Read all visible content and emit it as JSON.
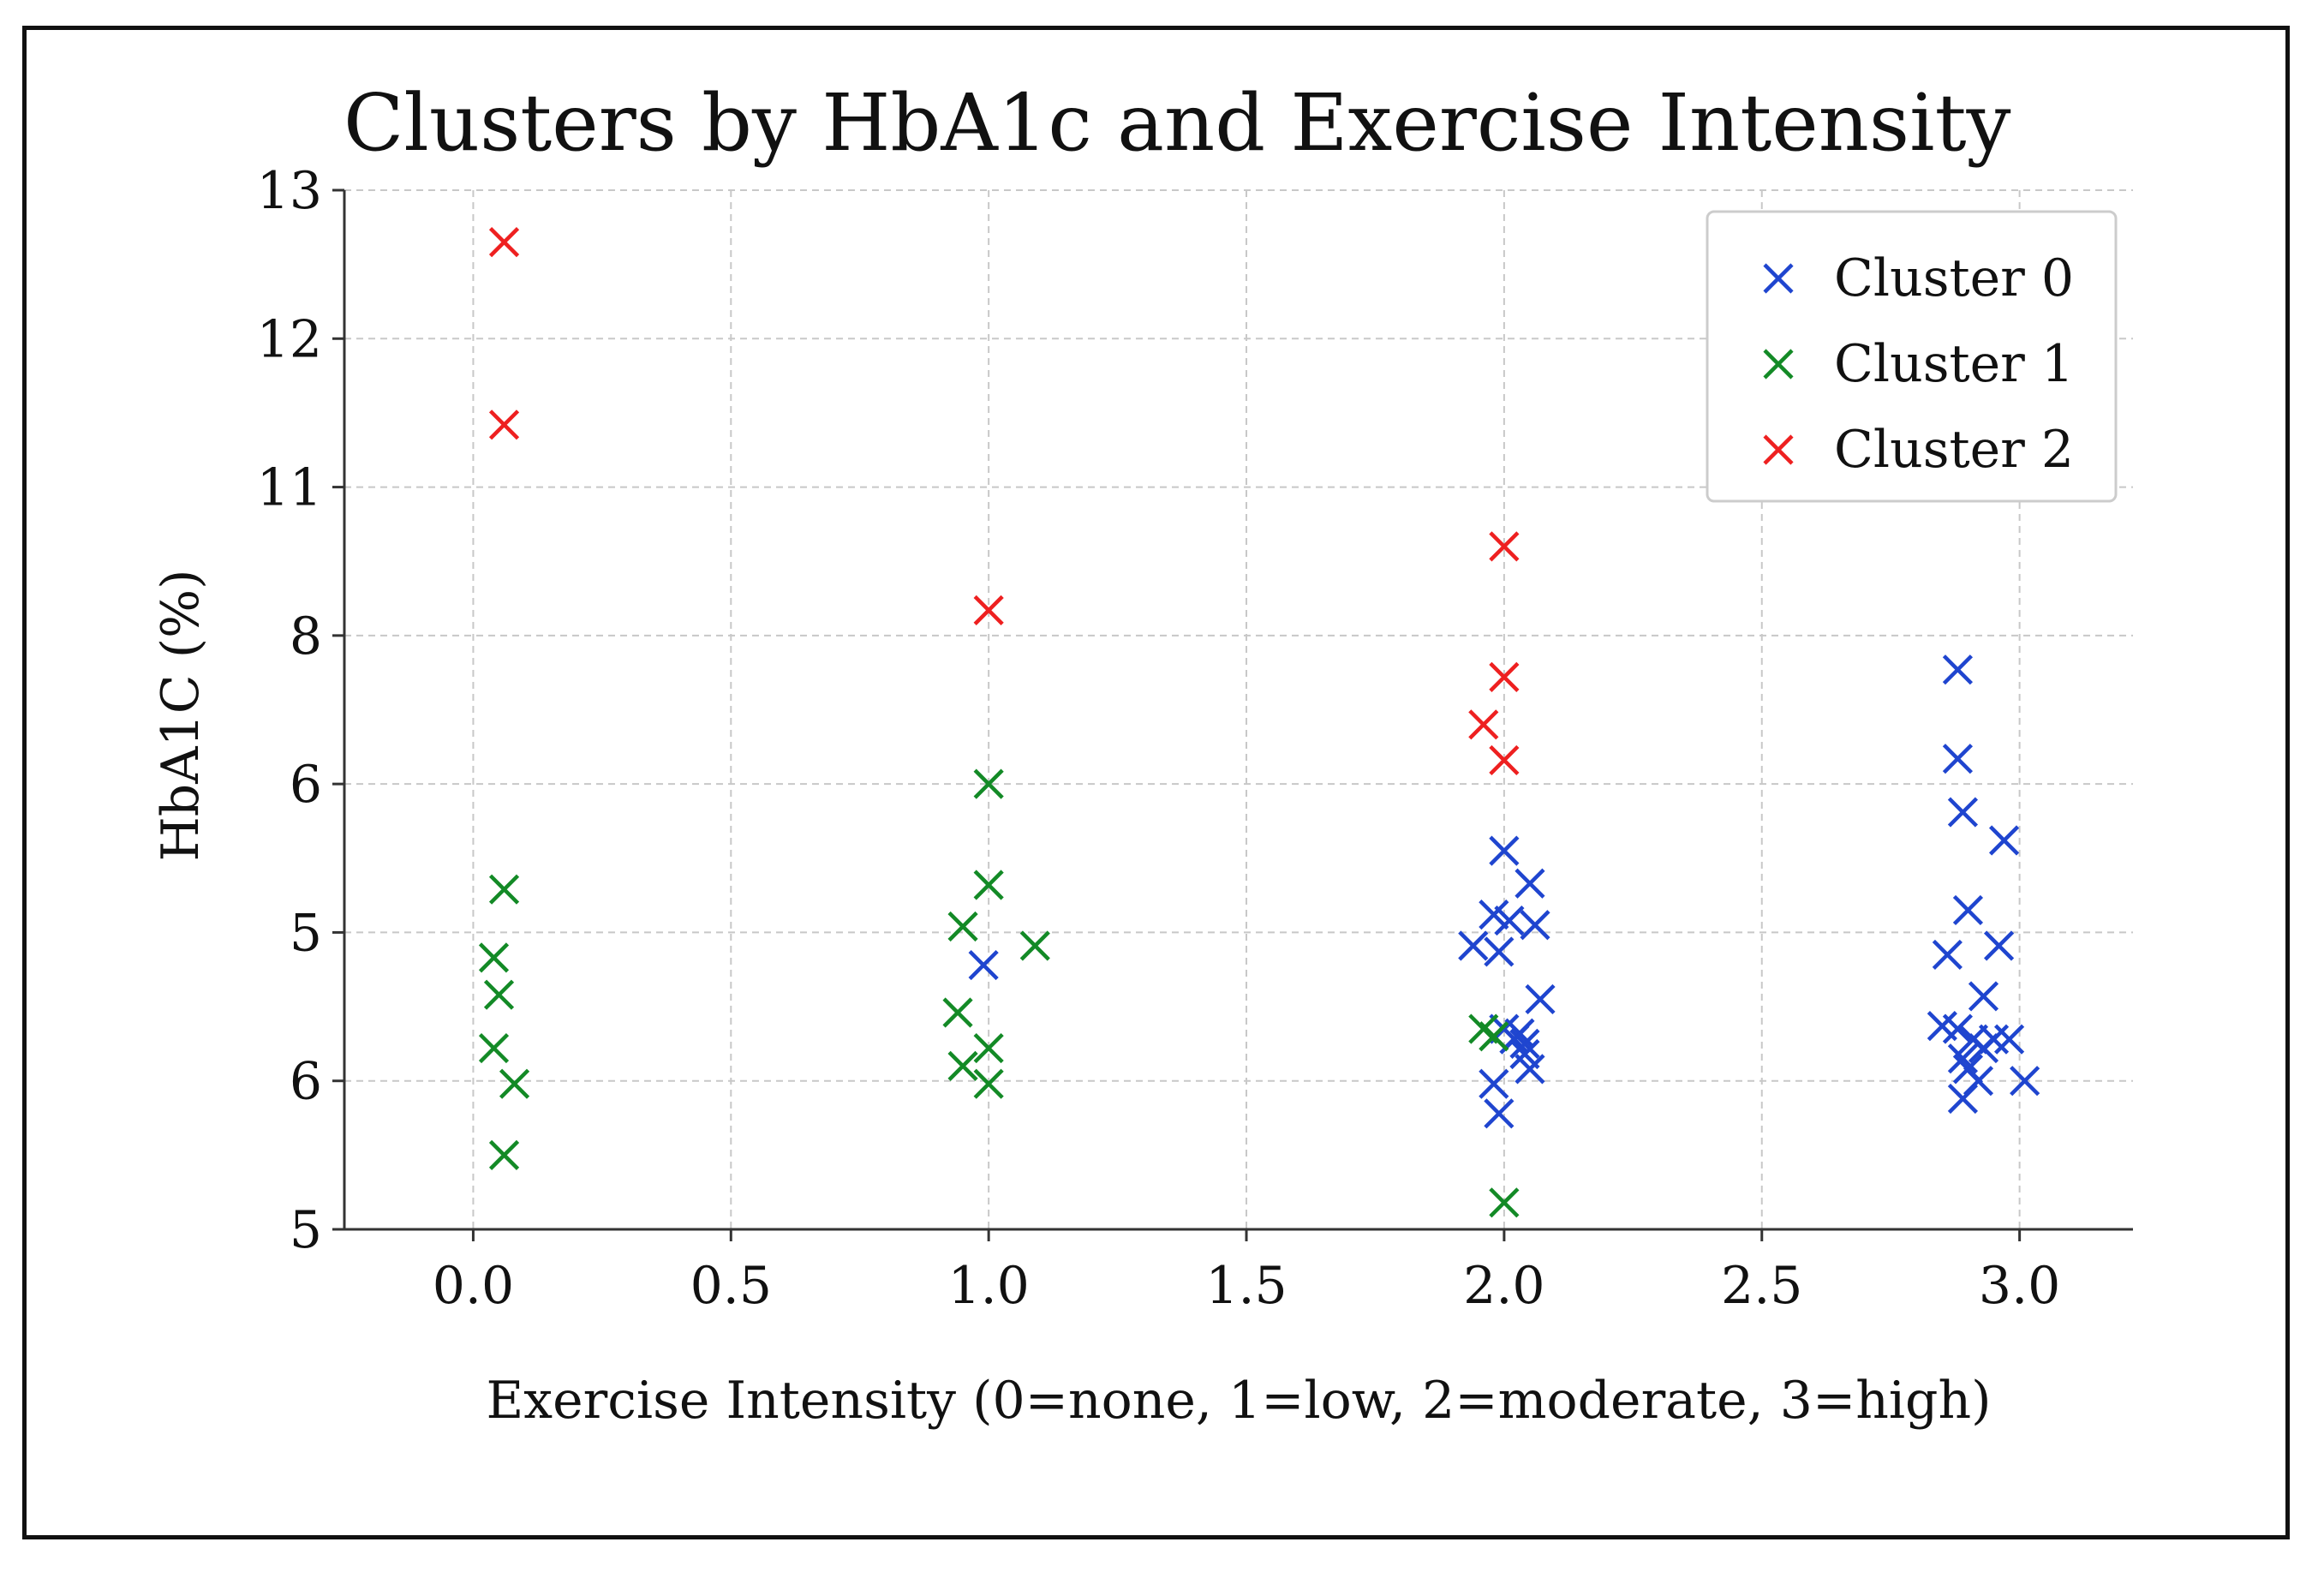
{
  "chart_data": {
    "type": "scatter",
    "title": "Clusters by HbA1c and Exercise Intensity",
    "xlabel": "Exercise Intensity (0=none, 1=low, 2=moderate, 3=high)",
    "ylabel": "HbA1C (%)",
    "xlim": [
      -0.25,
      3.22
    ],
    "ylim": [
      0,
      7
    ],
    "x_ticks": [
      0.0,
      0.5,
      1.0,
      1.5,
      2.0,
      2.5,
      3.0
    ],
    "x_tick_labels": [
      "0.0",
      "0.5",
      "1.0",
      "1.5",
      "2.0",
      "2.5",
      "3.0"
    ],
    "y_ticks": [
      0,
      1,
      2,
      3,
      4,
      5,
      6,
      7
    ],
    "y_tick_labels": [
      "5",
      "6",
      "5",
      "6",
      "8",
      "11",
      "12",
      "13"
    ],
    "grid": true,
    "legend_position": "top-right",
    "marker": "x",
    "series": [
      {
        "name": "Cluster 0",
        "color": "#1f45cf",
        "points": [
          [
            0.99,
            1.78
          ],
          [
            1.94,
            1.91
          ],
          [
            1.98,
            2.12
          ],
          [
            1.99,
            1.87
          ],
          [
            2.0,
            2.55
          ],
          [
            2.01,
            2.08
          ],
          [
            2.03,
            1.32
          ],
          [
            2.04,
            1.25
          ],
          [
            2.05,
            2.33
          ],
          [
            2.06,
            2.05
          ],
          [
            2.07,
            1.55
          ],
          [
            2.02,
            1.28
          ],
          [
            2.04,
            1.18
          ],
          [
            2.05,
            1.08
          ],
          [
            1.98,
            0.98
          ],
          [
            1.99,
            0.78
          ],
          [
            2.0,
            1.35
          ],
          [
            2.88,
            3.77
          ],
          [
            2.88,
            3.17
          ],
          [
            2.89,
            2.81
          ],
          [
            2.97,
            2.62
          ],
          [
            2.9,
            2.15
          ],
          [
            2.86,
            1.85
          ],
          [
            2.96,
            1.91
          ],
          [
            2.93,
            1.57
          ],
          [
            2.85,
            1.37
          ],
          [
            2.88,
            1.35
          ],
          [
            2.91,
            1.28
          ],
          [
            2.93,
            1.22
          ],
          [
            2.95,
            1.28
          ],
          [
            2.98,
            1.28
          ],
          [
            2.89,
            1.15
          ],
          [
            2.9,
            1.08
          ],
          [
            2.92,
            1.0
          ],
          [
            2.89,
            0.88
          ],
          [
            3.01,
            1.0
          ]
        ]
      },
      {
        "name": "Cluster 1",
        "color": "#138a26",
        "points": [
          [
            0.06,
            2.29
          ],
          [
            0.04,
            1.83
          ],
          [
            0.05,
            1.58
          ],
          [
            0.04,
            1.22
          ],
          [
            0.08,
            0.98
          ],
          [
            0.06,
            0.5
          ],
          [
            1.0,
            3.0
          ],
          [
            1.0,
            2.32
          ],
          [
            0.95,
            2.04
          ],
          [
            1.09,
            1.91
          ],
          [
            0.94,
            1.46
          ],
          [
            1.0,
            1.22
          ],
          [
            0.95,
            1.1
          ],
          [
            1.0,
            0.98
          ],
          [
            1.96,
            1.35
          ],
          [
            1.98,
            1.3
          ],
          [
            2.0,
            0.18
          ]
        ]
      },
      {
        "name": "Cluster 2",
        "color": "#ee2020",
        "points": [
          [
            0.06,
            6.65
          ],
          [
            0.06,
            5.42
          ],
          [
            1.0,
            4.17
          ],
          [
            2.0,
            4.6
          ],
          [
            2.0,
            3.72
          ],
          [
            1.96,
            3.4
          ],
          [
            2.0,
            3.16
          ]
        ]
      }
    ]
  }
}
